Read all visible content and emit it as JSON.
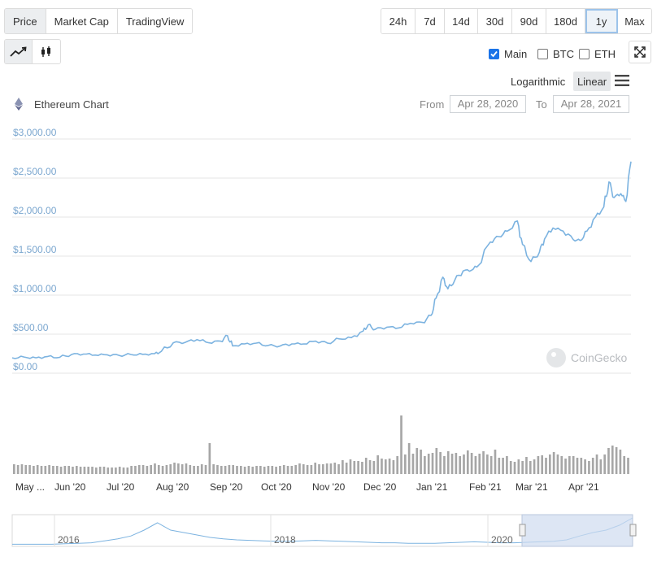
{
  "tabs": [
    "Price",
    "Market Cap",
    "TradingView"
  ],
  "active_tab": "Price",
  "ranges": [
    "24h",
    "7d",
    "14d",
    "30d",
    "90d",
    "180d",
    "1y",
    "Max"
  ],
  "active_range": "1y",
  "chart_types": [
    "line-chart-icon",
    "candlestick-icon"
  ],
  "compare": [
    {
      "label": "Main",
      "checked": true
    },
    {
      "label": "BTC",
      "checked": false
    },
    {
      "label": "ETH",
      "checked": false
    }
  ],
  "scale": {
    "log_label": "Logarithmic",
    "linear_label": "Linear",
    "active": "Linear"
  },
  "coin": {
    "chart_title": "Ethereum Chart"
  },
  "date_range": {
    "from_label": "From",
    "from_value": "Apr 28, 2020",
    "to_label": "To",
    "to_value": "Apr 28, 2021"
  },
  "watermark": "CoinGecko",
  "colors": {
    "line": "#7cb3e0",
    "volume": "#a6a6a6",
    "grid": "#e6e6e6",
    "axis_label": "#7aa6cf",
    "navigator_fill": "#cfdcf0"
  },
  "chart_data": {
    "type": "line",
    "title": "Ethereum Chart",
    "y_tick_labels": [
      "$3,000.00",
      "$2,500.00",
      "$2,000.00",
      "$1,500.00",
      "$1,000.00",
      "$500.00",
      "$0.00"
    ],
    "ylim": [
      0,
      3000
    ],
    "x_tick_labels": [
      "May ...",
      "Jun '20",
      "Jul '20",
      "Aug '20",
      "Sep '20",
      "Oct '20",
      "Nov '20",
      "Dec '20",
      "Jan '21",
      "Feb '21",
      "Mar '21",
      "Apr '21"
    ],
    "grid": true,
    "series": [
      {
        "x": [
          "2020-04-28",
          "2020-05-05",
          "2020-05-12",
          "2020-05-19",
          "2020-05-26",
          "2020-06-02",
          "2020-06-09",
          "2020-06-16",
          "2020-06-23",
          "2020-06-30",
          "2020-07-07",
          "2020-07-14",
          "2020-07-21",
          "2020-07-25",
          "2020-08-01",
          "2020-08-08",
          "2020-08-15",
          "2020-08-22",
          "2020-08-29",
          "2020-09-02",
          "2020-09-05",
          "2020-09-12",
          "2020-09-19",
          "2020-09-26",
          "2020-10-03",
          "2020-10-10",
          "2020-10-17",
          "2020-10-24",
          "2020-10-31",
          "2020-11-07",
          "2020-11-14",
          "2020-11-21",
          "2020-11-24",
          "2020-11-28",
          "2020-12-05",
          "2020-12-12",
          "2020-12-19",
          "2020-12-26",
          "2020-12-31",
          "2021-01-03",
          "2021-01-07",
          "2021-01-10",
          "2021-01-14",
          "2021-01-19",
          "2021-01-24",
          "2021-01-28",
          "2021-02-04",
          "2021-02-09",
          "2021-02-14",
          "2021-02-20",
          "2021-02-23",
          "2021-02-28",
          "2021-03-05",
          "2021-03-08",
          "2021-03-13",
          "2021-03-19",
          "2021-03-25",
          "2021-03-29",
          "2021-04-02",
          "2021-04-07",
          "2021-04-12",
          "2021-04-15",
          "2021-04-18",
          "2021-04-22",
          "2021-04-25",
          "2021-04-28"
        ],
        "y": [
          197,
          207,
          197,
          215,
          203,
          240,
          245,
          232,
          235,
          228,
          240,
          242,
          250,
          280,
          390,
          395,
          430,
          390,
          410,
          480,
          350,
          375,
          385,
          355,
          348,
          375,
          375,
          410,
          385,
          440,
          455,
          540,
          620,
          560,
          590,
          580,
          640,
          650,
          740,
          960,
          1230,
          1080,
          1190,
          1310,
          1320,
          1380,
          1680,
          1750,
          1820,
          1950,
          1650,
          1430,
          1550,
          1720,
          1860,
          1820,
          1710,
          1700,
          1820,
          2000,
          2130,
          2450,
          2250,
          2300,
          2200,
          2710
        ]
      }
    ],
    "volume": {
      "type": "bar",
      "values": [
        12,
        11,
        12,
        11,
        11,
        10,
        11,
        10,
        10,
        11,
        10,
        10,
        9,
        10,
        10,
        9,
        10,
        9,
        9,
        9,
        9,
        8,
        9,
        9,
        8,
        8,
        8,
        9,
        8,
        8,
        10,
        10,
        11,
        11,
        10,
        11,
        13,
        11,
        10,
        11,
        12,
        14,
        13,
        12,
        13,
        11,
        10,
        10,
        12,
        11,
        38,
        12,
        11,
        10,
        10,
        11,
        11,
        10,
        10,
        9,
        10,
        9,
        10,
        10,
        9,
        10,
        10,
        9,
        10,
        11,
        10,
        10,
        11,
        13,
        12,
        11,
        11,
        14,
        12,
        12,
        13,
        13,
        14,
        12,
        17,
        14,
        18,
        16,
        16,
        15,
        20,
        17,
        16,
        23,
        19,
        18,
        19,
        17,
        22,
        72,
        24,
        38,
        25,
        32,
        30,
        22,
        25,
        26,
        32,
        27,
        22,
        28,
        25,
        26,
        22,
        24,
        29,
        26,
        22,
        25,
        28,
        24,
        22,
        30,
        20,
        20,
        22,
        16,
        15,
        18,
        16,
        21,
        16,
        18,
        22,
        23,
        20,
        24,
        27,
        24,
        22,
        19,
        22,
        22,
        20,
        20,
        18,
        16,
        20,
        24,
        18,
        24,
        32,
        35,
        33,
        30,
        22,
        20
      ]
    },
    "navigator": {
      "x_tick_labels": [
        "2016",
        "2018",
        "2020"
      ],
      "values": [
        1,
        1,
        1,
        1,
        2,
        3,
        4,
        8,
        12,
        18,
        30,
        45,
        30,
        25,
        20,
        15,
        12,
        10,
        9,
        8,
        7,
        7,
        8,
        9,
        8,
        7,
        6,
        5,
        4,
        4,
        3,
        3,
        3,
        4,
        5,
        6,
        5,
        4,
        4,
        5,
        6,
        7,
        10,
        18,
        25,
        30,
        40,
        55
      ]
    }
  }
}
